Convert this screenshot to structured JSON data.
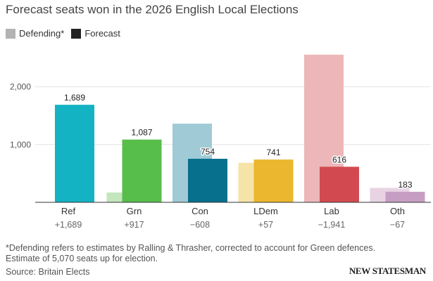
{
  "title": "Forecast seats won in the 2026 English Local Elections",
  "legend": {
    "defending": {
      "label": "Defending*",
      "color": "#b3b3b3"
    },
    "forecast": {
      "label": "Forecast",
      "color": "#222222"
    }
  },
  "chart_data": {
    "type": "bar",
    "ylim": [
      0,
      2600
    ],
    "yticks": [
      1000,
      2000
    ],
    "ytick_labels": [
      "1,000",
      "2,000"
    ],
    "grid": true,
    "legend_position": "top-left",
    "categories": [
      "Ref",
      "Grn",
      "Con",
      "LDem",
      "Lab",
      "Oth"
    ],
    "changes": [
      "+1,689",
      "+917",
      "−608",
      "+57",
      "−1,941",
      "−67"
    ],
    "series": [
      {
        "name": "Defending*",
        "values": [
          0,
          170,
          1362,
          684,
          2557,
          250
        ]
      },
      {
        "name": "Forecast",
        "values": [
          1689,
          1087,
          754,
          741,
          616,
          183
        ]
      }
    ],
    "forecast_labels": [
      "1,689",
      "1,087",
      "754",
      "741",
      "616",
      "183"
    ],
    "colors": {
      "defending": [
        "#f2f2f2",
        "#c3e6bd",
        "#9fcad6",
        "#f5e3a8",
        "#edb7b9",
        "#e8d3e3"
      ],
      "forecast": [
        "#13b3c3",
        "#57bd4b",
        "#07708c",
        "#ebb72e",
        "#d24a4f",
        "#c79ec3"
      ]
    }
  },
  "footnote": "*Defending refers to estimates by Ralling & Thrasher, corrected to account for Green defences. Estimate of 5,070 seats up for election.",
  "source": "Source: Britain Elects",
  "brand": "NEW STATESMAN"
}
